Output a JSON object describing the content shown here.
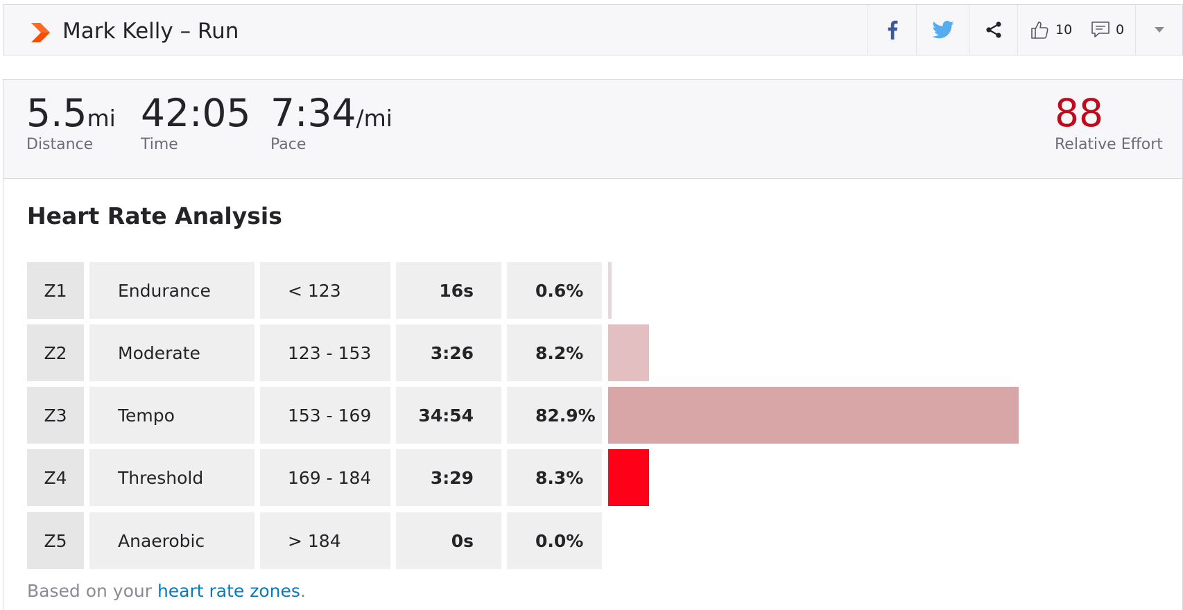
{
  "header": {
    "title": "Mark Kelly – Run",
    "logo_icon": "strava-chevron-logo",
    "actions": {
      "facebook_icon": "facebook-icon",
      "twitter_icon": "twitter-icon",
      "share_icon": "share-icon",
      "kudos_icon": "thumbs-up-icon",
      "kudos_count": "10",
      "comment_icon": "comment-icon",
      "comment_count": "0",
      "menu_icon": "caret-down-icon"
    }
  },
  "stats": {
    "distance": {
      "value": "5.5",
      "unit": "mi",
      "label": "Distance"
    },
    "time": {
      "value": "42:05",
      "label": "Time"
    },
    "pace": {
      "value": "7:34",
      "unit": "/mi",
      "label": "Pace"
    },
    "relative_effort": {
      "value": "88",
      "label": "Relative Effort"
    }
  },
  "analysis": {
    "title": "Heart Rate Analysis",
    "zones": [
      {
        "zone": "Z1",
        "name": "Endurance",
        "range": "< 123",
        "time": "16s",
        "percent_label": "0.6%",
        "percent": 0.6,
        "bar_color": "#e8d7d8"
      },
      {
        "zone": "Z2",
        "name": "Moderate",
        "range": "123 - 153",
        "time": "3:26",
        "percent_label": "8.2%",
        "percent": 8.2,
        "bar_color": "#e4bfc1"
      },
      {
        "zone": "Z3",
        "name": "Tempo",
        "range": "153 - 169",
        "time": "34:54",
        "percent_label": "82.9%",
        "percent": 82.9,
        "bar_color": "#d9a6a8"
      },
      {
        "zone": "Z4",
        "name": "Threshold",
        "range": "169 - 184",
        "time": "3:29",
        "percent_label": "8.3%",
        "percent": 8.3,
        "bar_color": "#ff0019"
      },
      {
        "zone": "Z5",
        "name": "Anaerobic",
        "range": "> 184",
        "time": "0s",
        "percent_label": "0.0%",
        "percent": 0.0,
        "bar_color": "#d9a6a8"
      }
    ],
    "footnote_prefix": "Based on your ",
    "footnote_link": "heart rate zones",
    "footnote_suffix": "."
  },
  "colors": {
    "brand_orange": "#fc4c02",
    "effort_red": "#c0091b",
    "link_blue": "#0a7ab8",
    "facebook_blue": "#3b5998",
    "twitter_blue": "#55acee"
  }
}
